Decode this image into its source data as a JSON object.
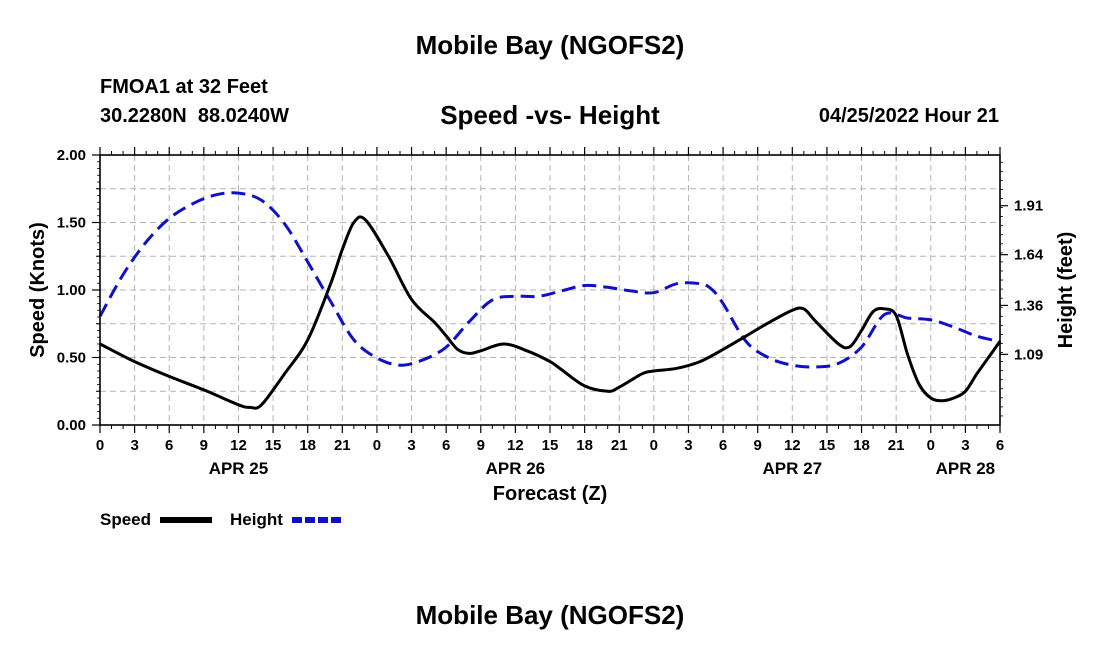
{
  "header": {
    "title": "Mobile Bay (NGOFS2)",
    "station": "FMOA1 at 32 Feet",
    "coords": "30.2280N  88.0240W",
    "subtitle": "Speed -vs- Height",
    "datetime": "04/25/2022 Hour 21"
  },
  "footer": {
    "title": "Mobile Bay (NGOFS2)"
  },
  "colors": {
    "speed": "#000000",
    "height": "#1010c8",
    "grid": "#b4b4b4"
  },
  "chart_data": {
    "type": "line",
    "title": "Speed -vs- Height",
    "xlabel": "Forecast (Z)",
    "ylabel": "Speed (Knots)",
    "y2label": "Height (feet)",
    "x_range_hours": [
      0,
      78
    ],
    "ylim": [
      0,
      2.0
    ],
    "y2lim": [
      0.7,
      2.19
    ],
    "yticks": [
      "0.00",
      "0.50",
      "1.00",
      "1.50",
      "2.00"
    ],
    "y2ticks": [
      "1.09",
      "1.36",
      "1.64",
      "1.91"
    ],
    "xtick_labels": [
      "0",
      "3",
      "6",
      "9",
      "12",
      "15",
      "18",
      "21",
      "0",
      "3",
      "6",
      "9",
      "12",
      "15",
      "18",
      "21",
      "0",
      "3",
      "6",
      "9",
      "12",
      "15",
      "18",
      "21",
      "0",
      "3",
      "6"
    ],
    "date_labels": [
      {
        "label": "APR 25",
        "hour": 12
      },
      {
        "label": "APR 26",
        "hour": 36
      },
      {
        "label": "APR 27",
        "hour": 60
      },
      {
        "label": "APR 28",
        "hour": 75
      }
    ],
    "series": [
      {
        "name": "Speed",
        "axis": "left",
        "style": "solid",
        "x": [
          0,
          3,
          6,
          9,
          12,
          13,
          14,
          16,
          18,
          20,
          21,
          22,
          23,
          25,
          27,
          29,
          30,
          31,
          32,
          33,
          35,
          37,
          39,
          40,
          42,
          44,
          45,
          47,
          48,
          50,
          52,
          54,
          56,
          58,
          60,
          61,
          62,
          64,
          65,
          66,
          67,
          68,
          69,
          70,
          71,
          72,
          73,
          74,
          75,
          76,
          77,
          78
        ],
        "y": [
          0.6,
          0.47,
          0.36,
          0.26,
          0.15,
          0.13,
          0.15,
          0.38,
          0.63,
          1.05,
          1.3,
          1.5,
          1.52,
          1.25,
          0.93,
          0.76,
          0.66,
          0.56,
          0.53,
          0.55,
          0.6,
          0.55,
          0.47,
          0.41,
          0.29,
          0.25,
          0.28,
          0.38,
          0.4,
          0.42,
          0.47,
          0.56,
          0.66,
          0.76,
          0.85,
          0.86,
          0.77,
          0.6,
          0.58,
          0.7,
          0.84,
          0.86,
          0.81,
          0.52,
          0.3,
          0.2,
          0.18,
          0.2,
          0.25,
          0.38,
          0.5,
          0.62
        ]
      },
      {
        "name": "Height",
        "axis": "right",
        "style": "dashed",
        "x": [
          0,
          2,
          4,
          6,
          8,
          10,
          12,
          14,
          16,
          18,
          20,
          22,
          24,
          26,
          28,
          30,
          32,
          34,
          36,
          38,
          40,
          42,
          44,
          46,
          48,
          50,
          52,
          53,
          54,
          56,
          58,
          60,
          62,
          64,
          66,
          68,
          70,
          72,
          74,
          76,
          78
        ],
        "y": [
          1.3,
          1.53,
          1.71,
          1.84,
          1.92,
          1.97,
          1.98,
          1.94,
          1.81,
          1.6,
          1.38,
          1.17,
          1.07,
          1.03,
          1.06,
          1.13,
          1.27,
          1.39,
          1.41,
          1.41,
          1.44,
          1.47,
          1.46,
          1.44,
          1.43,
          1.48,
          1.48,
          1.45,
          1.37,
          1.16,
          1.07,
          1.03,
          1.02,
          1.04,
          1.13,
          1.31,
          1.29,
          1.28,
          1.24,
          1.19,
          1.16
        ]
      }
    ],
    "legend": [
      {
        "label": "Speed",
        "style": "solid"
      },
      {
        "label": "Height",
        "style": "dashed"
      }
    ]
  }
}
